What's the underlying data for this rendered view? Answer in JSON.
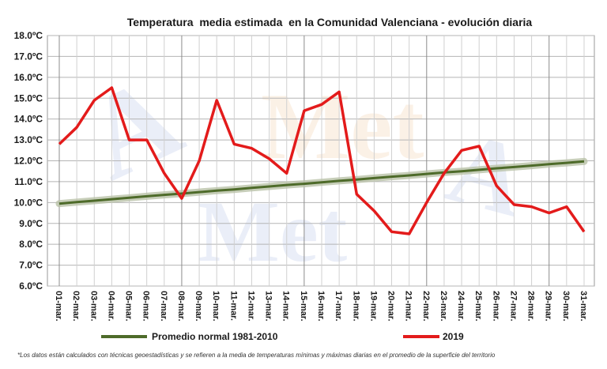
{
  "chart_data": {
    "type": "line",
    "title": "Temperatura  media estimada  en la Comunidad Valenciana - evolución diaria",
    "xlabel": "",
    "ylabel": "",
    "categories": [
      "01-mar.",
      "02-mar.",
      "03-mar.",
      "04-mar.",
      "05-mar.",
      "06-mar.",
      "07-mar.",
      "08-mar.",
      "09-mar.",
      "10-mar.",
      "11-mar.",
      "12-mar.",
      "13-mar.",
      "14-mar.",
      "15-mar.",
      "16-mar.",
      "17-mar.",
      "18-mar.",
      "19-mar.",
      "20-mar.",
      "21-mar.",
      "22-mar.",
      "23-mar.",
      "24-mar.",
      "25-mar.",
      "26-mar.",
      "27-mar.",
      "28-mar.",
      "29-mar.",
      "30-mar.",
      "31-mar."
    ],
    "y_ticks": [
      "6.0ºC",
      "7.0ºC",
      "8.0ºC",
      "9.0ºC",
      "10.0ºC",
      "11.0ºC",
      "12.0ºC",
      "13.0ºC",
      "14.0ºC",
      "15.0ºC",
      "16.0ºC",
      "17.0ºC",
      "18.0ºC"
    ],
    "ylim": [
      6,
      18
    ],
    "grid": true,
    "legend_position": "bottom",
    "series": [
      {
        "name": "Promedio normal 1981-2010",
        "color": "#4e6b2a",
        "values": [
          9.95,
          10.02,
          10.09,
          10.16,
          10.23,
          10.3,
          10.37,
          10.43,
          10.5,
          10.57,
          10.63,
          10.7,
          10.77,
          10.84,
          10.9,
          10.97,
          11.04,
          11.1,
          11.17,
          11.24,
          11.3,
          11.37,
          11.44,
          11.5,
          11.57,
          11.64,
          11.7,
          11.77,
          11.84,
          11.9,
          11.97
        ]
      },
      {
        "name": "2019",
        "color": "#e31b1b",
        "values": [
          12.8,
          13.6,
          14.9,
          15.5,
          13.0,
          13.0,
          11.4,
          10.2,
          12.0,
          14.9,
          12.8,
          12.6,
          12.1,
          11.4,
          14.4,
          14.7,
          15.3,
          10.4,
          9.6,
          8.6,
          8.5,
          10.0,
          11.4,
          12.5,
          12.7,
          10.8,
          9.9,
          9.8,
          9.5,
          9.8,
          8.6
        ]
      }
    ],
    "footnote": "*Los datos están calculados con técnicas geoestadísticas y se refieren a la media de temperaturas mínimas y máximas diarias en el promedio de la superficie del territorio"
  }
}
